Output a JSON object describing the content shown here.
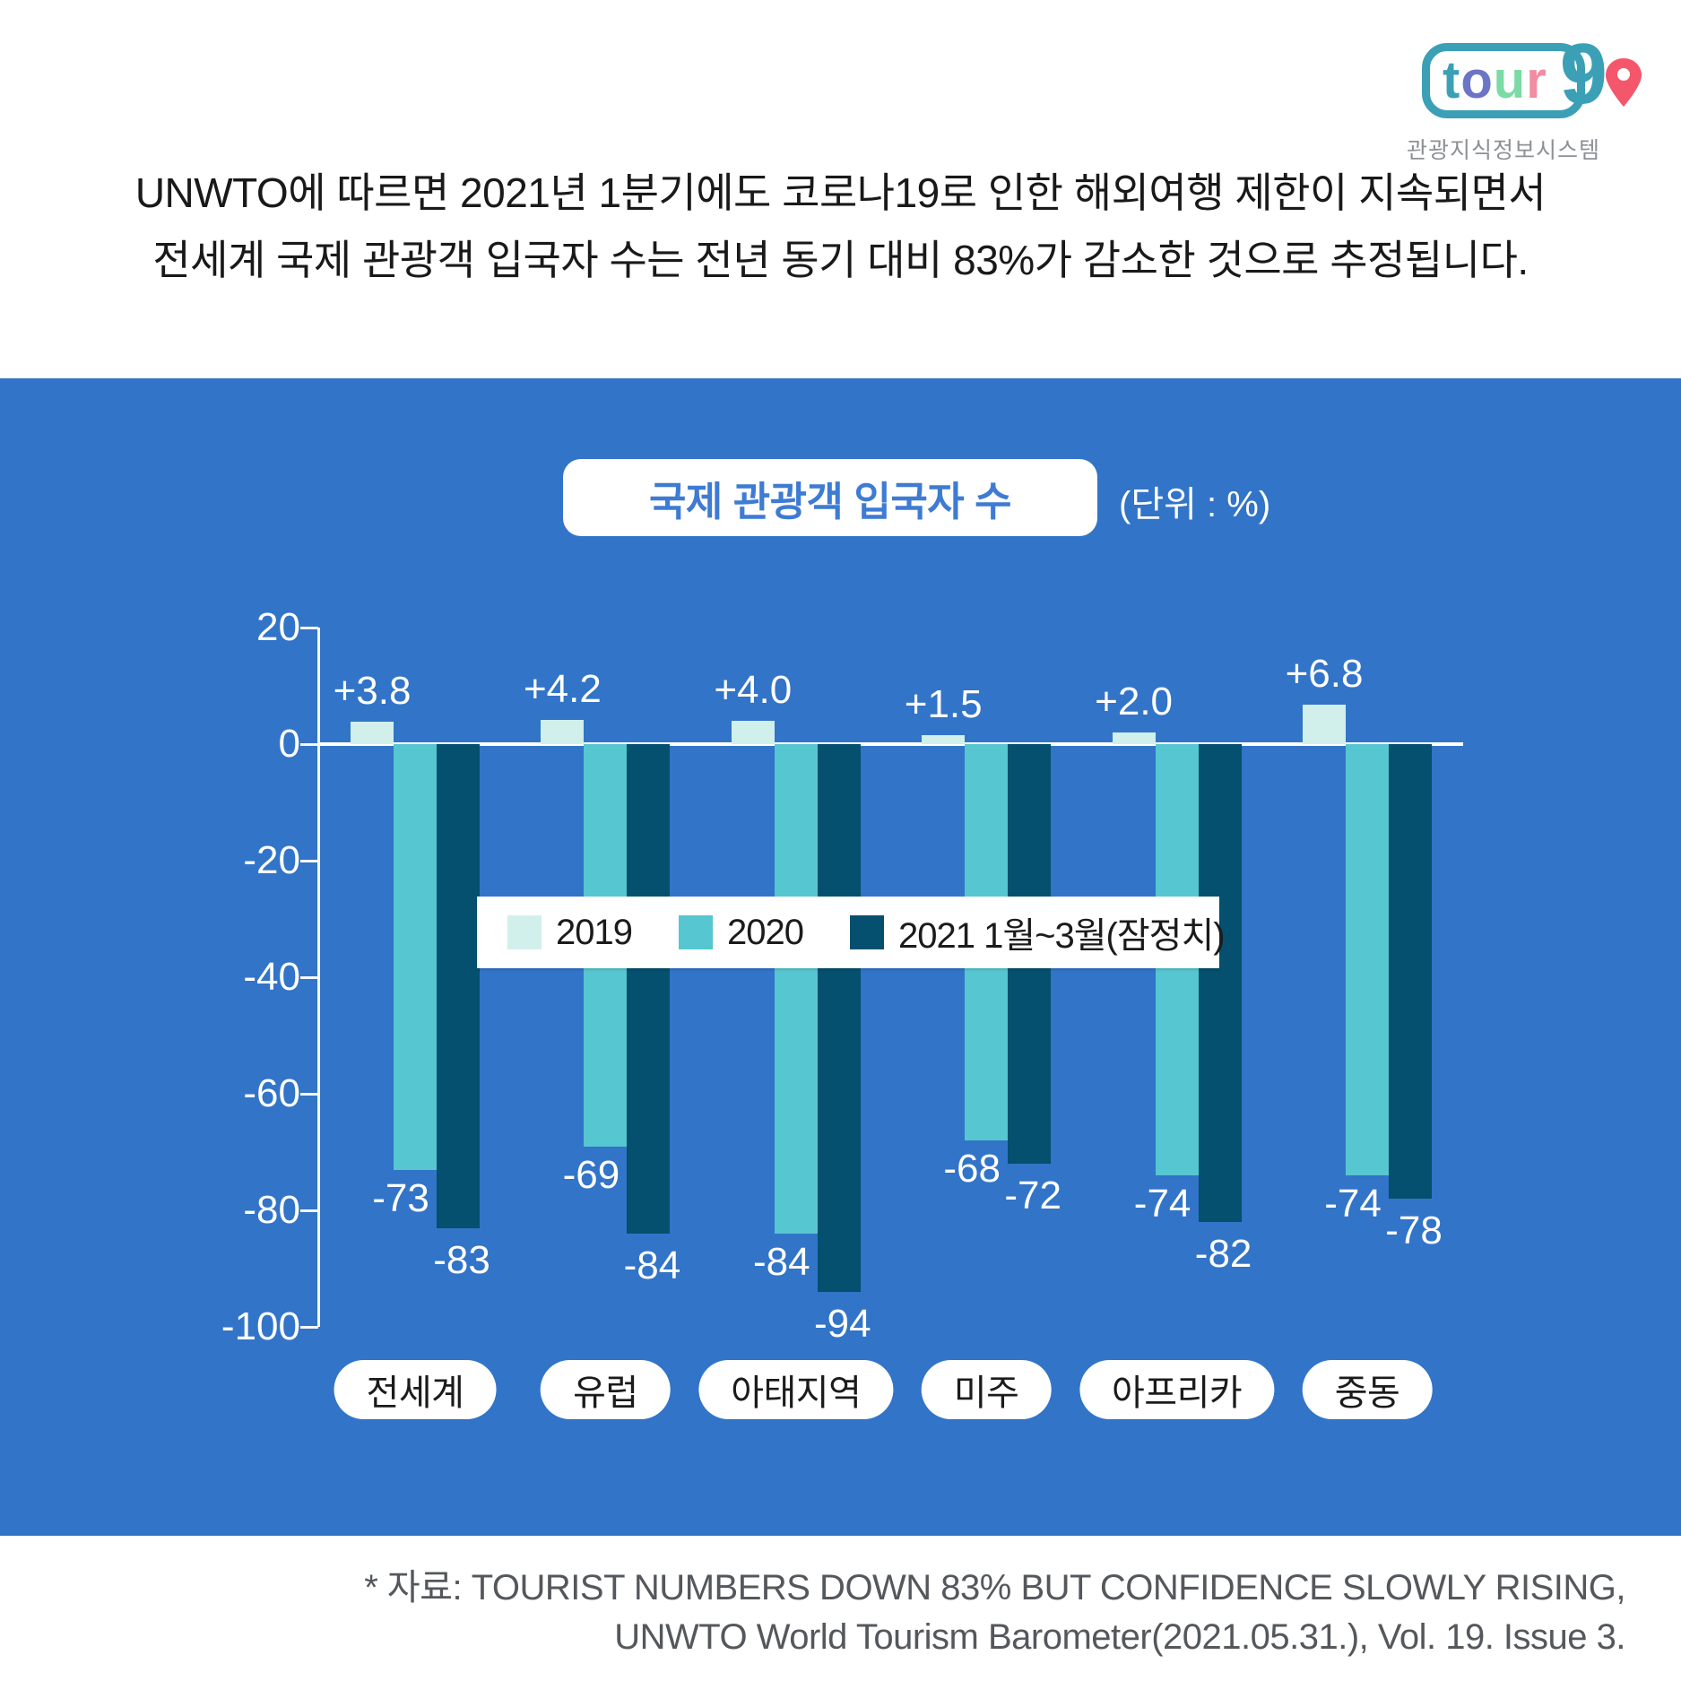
{
  "logo": {
    "letters": [
      {
        "ch": "t",
        "color": "#3BA0B5"
      },
      {
        "ch": "o",
        "color": "#6C74C6"
      },
      {
        "ch": "u",
        "color": "#7CDAA6"
      },
      {
        "ch": "r",
        "color": "#F18CA2"
      }
    ],
    "nine": "9",
    "caption": "관광지식정보시스템",
    "pin_color": "#F4566B"
  },
  "headline": {
    "line1": "UNWTO에 따르면 2021년 1분기에도 코로나19로 인한 해외여행 제한이 지속되면서",
    "line2": "전세계 국제 관광객 입국자 수는 전년 동기 대비 83%가 감소한 것으로 추정됩니다."
  },
  "chart_panel": {
    "title": "국제 관광객 입국자 수",
    "unit_label": "(단위 : %)"
  },
  "chart_data": {
    "type": "bar",
    "title": "국제 관광객 입국자 수",
    "unit": "%",
    "categories": [
      "전세계",
      "유럽",
      "아태지역",
      "미주",
      "아프리카",
      "중동"
    ],
    "series": [
      {
        "name": "2019",
        "color": "#D1F0EC",
        "values": [
          3.8,
          4.2,
          4.0,
          1.5,
          2.0,
          6.8
        ],
        "labels": [
          "+3.8",
          "+4.2",
          "+4.0",
          "+1.5",
          "+2.0",
          "+6.8"
        ]
      },
      {
        "name": "2020",
        "color": "#56C6D0",
        "values": [
          -73,
          -69,
          -84,
          -68,
          -74,
          -74
        ],
        "labels": [
          "-73",
          "-69",
          "-84",
          "-68",
          "-74",
          "-74"
        ]
      },
      {
        "name": "2021 1월~3월(잠정치)",
        "color": "#04506E",
        "values": [
          -83,
          -84,
          -94,
          -72,
          -82,
          -78
        ],
        "labels": [
          "-83",
          "-84",
          "-94",
          "-72",
          "-82",
          "-78"
        ]
      }
    ],
    "y_ticks": [
      {
        "label": "20",
        "value": 20
      },
      {
        "label": "0",
        "value": 0
      },
      {
        "label": "-20",
        "value": -20
      },
      {
        "label": "-40",
        "value": -40
      },
      {
        "label": "-60",
        "value": -60
      },
      {
        "label": "-80",
        "value": -80
      },
      {
        "label": "-100",
        "value": -100
      }
    ],
    "ylim": [
      -100,
      20
    ],
    "grid": false,
    "legend_position": "center-overlay",
    "value_label_color": "#ffffff",
    "panel_color": "#3274C8"
  },
  "source": {
    "line1": "* 자료: TOURIST NUMBERS DOWN 83% BUT CONFIDENCE SLOWLY RISING,",
    "line2": "UNWTO World Tourism Barometer(2021.05.31.), Vol. 19. Issue 3."
  }
}
